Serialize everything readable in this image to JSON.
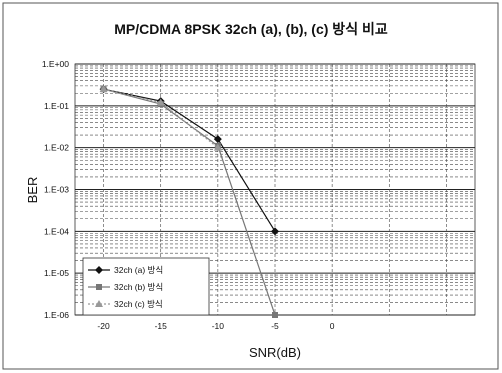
{
  "chart_data": {
    "type": "line",
    "title": "MP/CDMA 8PSK 32ch  (a), (b), (c) 방식 비교",
    "xlabel": "SNR(dB)",
    "ylabel": "BER",
    "x_ticks": [
      "-20",
      "-15",
      "-10",
      "-5",
      "0"
    ],
    "x_tick_values": [
      -20,
      -15,
      -10,
      -5,
      0
    ],
    "xlim": [
      -22.5,
      12.5
    ],
    "y_scale": "log",
    "ylim": [
      1e-06,
      1
    ],
    "y_ticks": [
      "1.E+00",
      "1.E-01",
      "1.E-02",
      "1.E-03",
      "1.E-04",
      "1.E-05",
      "1.E-06"
    ],
    "y_tick_values": [
      1,
      0.1,
      0.01,
      0.001,
      0.0001,
      1e-05,
      1e-06
    ],
    "grid": true,
    "legend_position": "bottom-left",
    "series": [
      {
        "name": "32ch (a) 방식",
        "marker": "diamond",
        "color": "#111111",
        "dash": "",
        "x": [
          -20,
          -15,
          -10,
          -5
        ],
        "y": [
          0.25,
          0.13,
          0.016,
          0.0001
        ]
      },
      {
        "name": "32ch (b) 방식",
        "marker": "square",
        "color": "#777777",
        "dash": "",
        "x": [
          -20,
          -15,
          -10,
          -5
        ],
        "y": [
          0.25,
          0.11,
          0.011,
          1e-06
        ]
      },
      {
        "name": "32ch (c) 방식",
        "marker": "triangle",
        "color": "#999999",
        "dash": "2,2",
        "x": [
          -20,
          -15,
          -10
        ],
        "y": [
          0.25,
          0.12,
          0.01
        ]
      }
    ]
  }
}
